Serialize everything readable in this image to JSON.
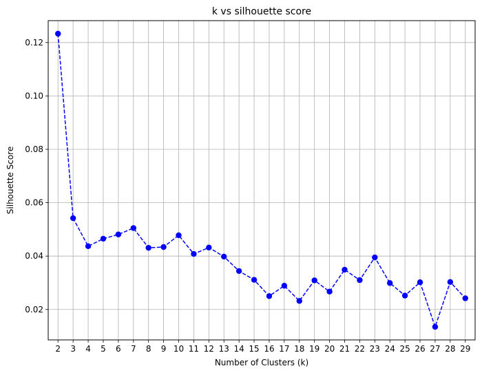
{
  "chart_data": {
    "type": "line",
    "title": "k vs silhouette score",
    "xlabel": "Number of Clusters (k)",
    "ylabel": "Silhouette Score",
    "x": [
      2,
      3,
      4,
      5,
      6,
      7,
      8,
      9,
      10,
      11,
      12,
      13,
      14,
      15,
      16,
      17,
      18,
      19,
      20,
      21,
      22,
      23,
      24,
      25,
      26,
      27,
      28,
      29
    ],
    "y": [
      0.1233,
      0.0542,
      0.0437,
      0.0465,
      0.0481,
      0.0505,
      0.0431,
      0.0434,
      0.0478,
      0.0408,
      0.0432,
      0.0398,
      0.0344,
      0.0311,
      0.025,
      0.0289,
      0.0232,
      0.0309,
      0.0267,
      0.0349,
      0.031,
      0.0395,
      0.0299,
      0.0252,
      0.0302,
      0.0135,
      0.0303,
      0.0242
    ],
    "xlim": [
      1.35,
      29.65
    ],
    "ylim": [
      0.0086,
      0.1282
    ],
    "yticks": [
      0.02,
      0.04,
      0.06,
      0.08,
      0.1,
      0.12
    ],
    "ytick_labels": [
      "0.02",
      "0.04",
      "0.06",
      "0.08",
      "0.10",
      "0.12"
    ],
    "grid": true,
    "line_style": "dashed",
    "marker": "circle",
    "color": "#0000ff"
  }
}
